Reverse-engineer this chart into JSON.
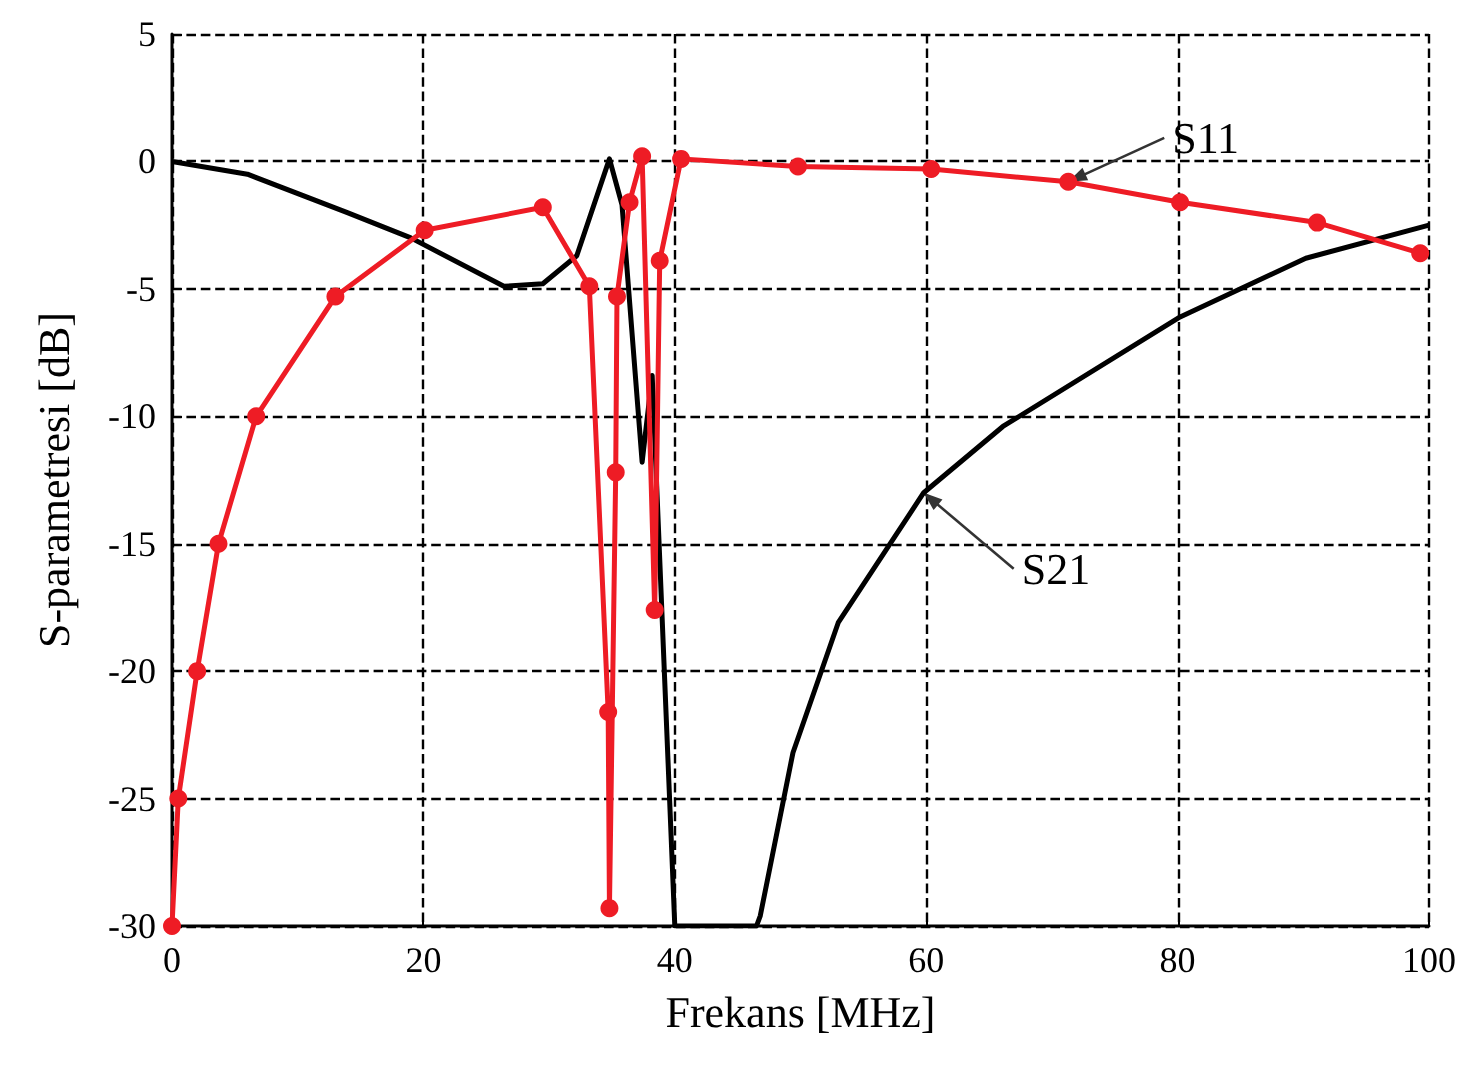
{
  "chart_data": {
    "type": "line",
    "xlabel": "Frekans [MHz]",
    "ylabel": "S-parametresi [dB]",
    "xlim": [
      0,
      100
    ],
    "xticks": [
      0,
      20,
      40,
      60,
      80,
      100
    ],
    "ylim": [
      -30,
      5
    ],
    "yticks": [
      -30,
      -25,
      -20,
      -15,
      -10,
      -5,
      0,
      5
    ],
    "grid": true,
    "series": [
      {
        "color": "#000000",
        "marker": "none",
        "x": [
          0,
          6,
          13.9,
          19,
          26.4,
          29.5,
          32.2,
          34.8,
          35.8,
          37.4,
          38.2,
          40,
          46.5,
          46.8,
          49.4,
          53,
          59.8,
          66.1,
          80.2,
          90.2,
          100
        ],
        "values": [
          0,
          -0.5,
          -2,
          -3,
          -4.9,
          -4.8,
          -3.7,
          0.1,
          -1.7,
          -11.8,
          -8.4,
          -30,
          -30,
          -29.6,
          -23.2,
          -18.1,
          -13,
          -10.4,
          -6.1,
          -3.8,
          -2.5
        ]
      },
      {
        "color": "#ee1c25",
        "marker": "circle",
        "x": [
          0,
          0.5,
          2,
          3.7,
          6.7,
          13,
          20.1,
          29.5,
          33.2,
          34.7,
          34.8,
          35.3,
          35.4,
          36.4,
          37.4,
          38.4,
          38.8,
          40.5,
          49.8,
          60.4,
          71.3,
          80.2,
          91.1,
          99.3
        ],
        "values": [
          -30,
          -25,
          -20,
          -15,
          -10,
          -5.3,
          -2.7,
          -1.8,
          -4.9,
          -21.6,
          -29.3,
          -12.2,
          -5.3,
          -1.6,
          0.2,
          -17.6,
          -3.9,
          0.1,
          -0.2,
          -0.3,
          -0.8,
          -1.6,
          -2.4,
          -3.6
        ]
      }
    ],
    "annotations": [
      {
        "text": "S11",
        "x": 71.3,
        "y": -0.8
      },
      {
        "text": "S21",
        "x": 59.8,
        "y": -13
      }
    ]
  }
}
